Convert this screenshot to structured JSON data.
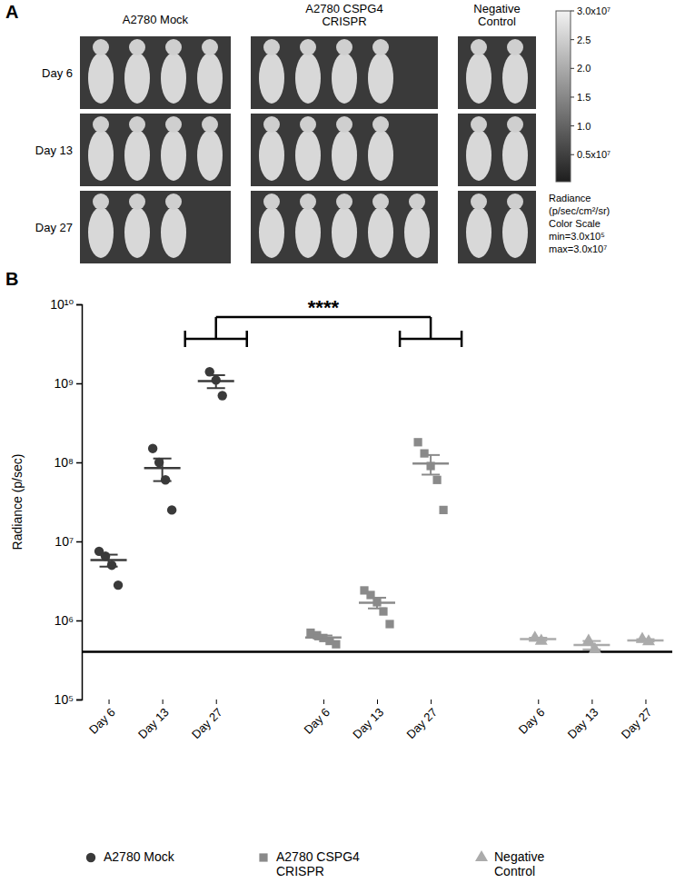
{
  "panel_a": {
    "label": "A",
    "groups": [
      "A2780 Mock",
      "A2780 CSPG4 CRISPR",
      "Negative Control"
    ],
    "rows": [
      {
        "label": "Day 6",
        "mice": [
          4,
          4,
          2
        ]
      },
      {
        "label": "Day 13",
        "mice": [
          4,
          4,
          2
        ]
      },
      {
        "label": "Day 27",
        "mice": [
          3,
          5,
          2
        ]
      }
    ],
    "colorbar": {
      "range": [
        300000,
        30000000
      ],
      "ticks": [
        {
          "value": 30000000,
          "label": "3.0x10⁷"
        },
        {
          "value": 25000000,
          "label": "2.5"
        },
        {
          "value": 20000000,
          "label": "2.0"
        },
        {
          "value": 15000000,
          "label": "1.5"
        },
        {
          "value": 10000000,
          "label": "1.0"
        },
        {
          "value": 5000000,
          "label": "0.5x10⁷"
        }
      ],
      "caption": [
        "Radiance",
        "(p/sec/cm²/sr)",
        "Color Scale",
        "min=3.0x10⁵",
        "max=3.0x10⁷"
      ]
    }
  },
  "chart_data": {
    "type": "scatter",
    "panel_label": "B",
    "y_label": "Radiance (p/sec)",
    "log": "y",
    "legend": "bottom",
    "categories": [
      "Day 6",
      "Day 13",
      "Day 27",
      null,
      "Day 6",
      "Day 13",
      "Day 27",
      null,
      "Day 6",
      "Day 13",
      "Day 27"
    ],
    "ylim": [
      100000,
      10000000000
    ],
    "yticks": [
      {
        "value": 100000,
        "label": "10⁵"
      },
      {
        "value": 1000000,
        "label": "10⁶"
      },
      {
        "value": 10000000,
        "label": "10⁷"
      },
      {
        "value": 100000000,
        "label": "10⁸"
      },
      {
        "value": 1000000000,
        "label": "10⁹"
      },
      {
        "value": 10000000000,
        "label": "10¹⁰"
      }
    ],
    "hline": 400000,
    "annotations": [
      {
        "text": "****",
        "from": 2,
        "to": 6
      }
    ],
    "series": [
      {
        "name": "A2780 Mock",
        "color": "#3a3a3a",
        "marker": "circle",
        "values": [
          [
            7500000,
            6500000,
            5000000,
            2800000
          ],
          [
            150000000,
            100000000,
            60000000,
            25000000
          ],
          [
            1400000000,
            1100000000,
            700000000
          ],
          null,
          null,
          null,
          null,
          null,
          null,
          null,
          null
        ],
        "mean": [
          5800000,
          85000000,
          1070000000,
          null,
          null,
          null,
          null,
          null,
          null,
          null,
          null
        ],
        "error": [
          1000000,
          27000000,
          200000000,
          null,
          null,
          null,
          null,
          null,
          null,
          null,
          null
        ]
      },
      {
        "name": "A2780 CSPG4 CRISPR",
        "color": "#8a8a8a",
        "marker": "square",
        "values": [
          null,
          null,
          null,
          null,
          [
            700000,
            650000,
            600000,
            550000,
            500000
          ],
          [
            2400000,
            2100000,
            1700000,
            1300000,
            900000
          ],
          [
            180000000,
            130000000,
            90000000,
            60000000,
            25000000
          ],
          null,
          null,
          null,
          null
        ],
        "mean": [
          null,
          null,
          null,
          null,
          610000,
          1680000,
          97000000,
          null,
          null,
          null,
          null
        ],
        "error": [
          null,
          null,
          null,
          null,
          35000,
          260000,
          27000000,
          null,
          null,
          null,
          null
        ]
      },
      {
        "name": "Negative Control",
        "color": "#ababab",
        "marker": "triangle",
        "values": [
          null,
          null,
          null,
          null,
          null,
          null,
          null,
          null,
          [
            600000,
            550000
          ],
          [
            550000,
            430000
          ],
          [
            580000,
            540000
          ]
        ],
        "mean": [
          null,
          null,
          null,
          null,
          null,
          null,
          null,
          null,
          580000,
          490000,
          560000
        ],
        "error": [
          null,
          null,
          null,
          null,
          null,
          null,
          null,
          null,
          25000,
          60000,
          20000
        ]
      }
    ]
  }
}
